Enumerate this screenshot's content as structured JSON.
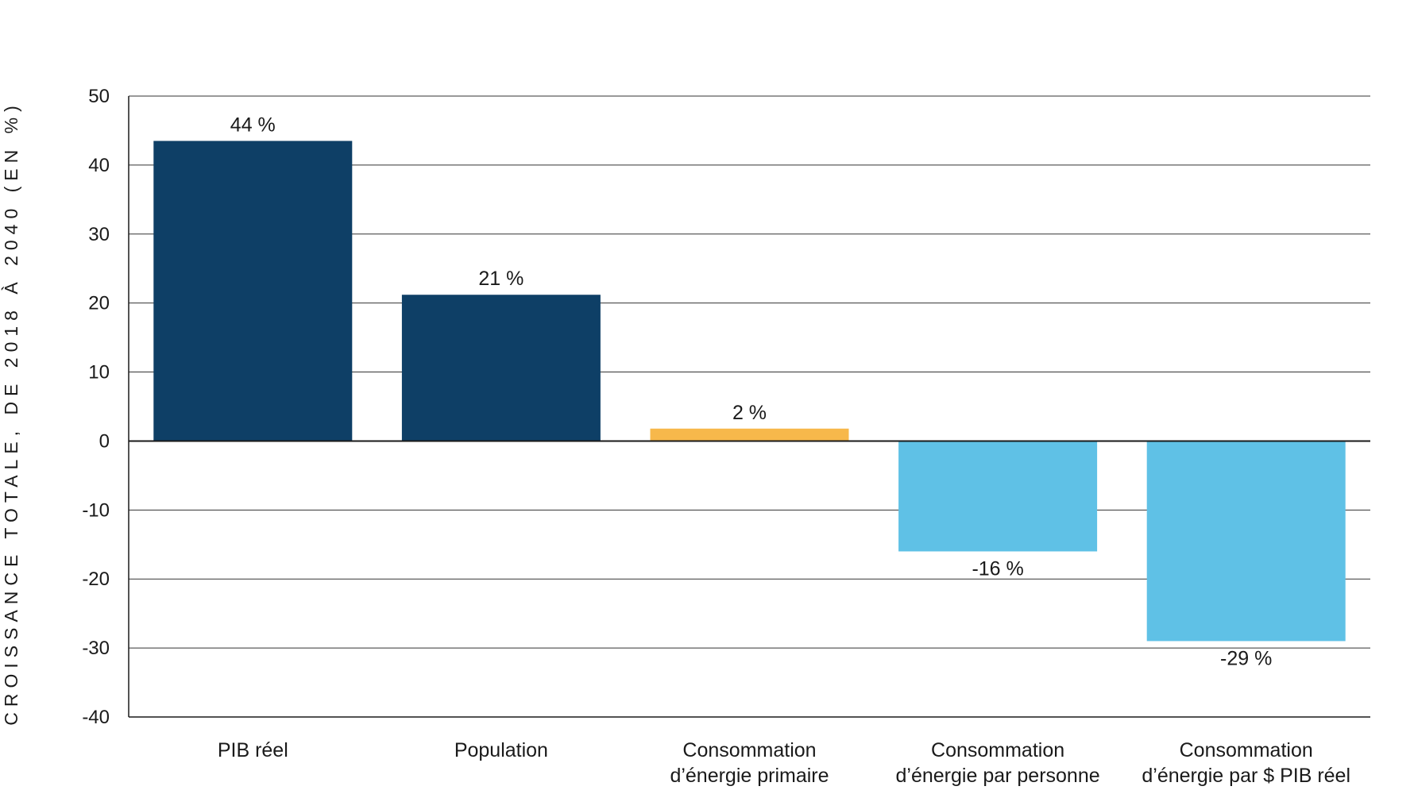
{
  "chart_data": {
    "type": "bar",
    "title": "",
    "xlabel": "",
    "ylabel": "CROISSANCE TOTALE, DE 2018 À 2040 (EN %)",
    "ylim": [
      -40,
      50
    ],
    "yticks": [
      50,
      40,
      30,
      20,
      10,
      0,
      -10,
      -20,
      -30,
      -40
    ],
    "grid": true,
    "legend": "none",
    "categories": [
      [
        "PIB réel"
      ],
      [
        "Population"
      ],
      [
        "Consommation",
        "d’énergie primaire"
      ],
      [
        "Consommation",
        "d’énergie par personne"
      ],
      [
        "Consommation",
        "d’énergie par $ PIB réel"
      ]
    ],
    "values": [
      43.5,
      21.2,
      1.8,
      -16.0,
      -29.0
    ],
    "data_labels": [
      "44 %",
      "21 %",
      "2 %",
      "-16 %",
      "-29 %"
    ],
    "colors": [
      "#0e3f66",
      "#0e3f66",
      "#f7b84b",
      "#5fc1e6",
      "#5fc1e6"
    ]
  }
}
